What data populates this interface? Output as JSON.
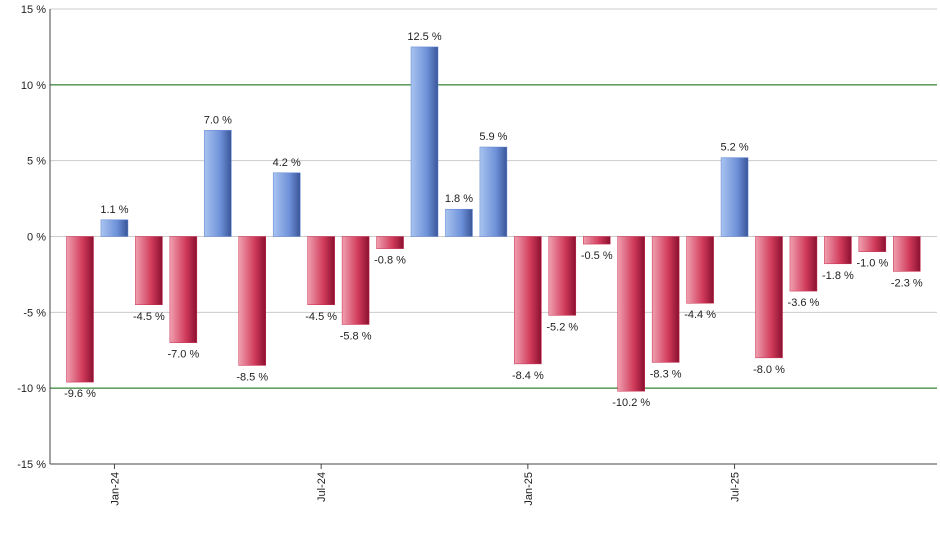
{
  "chart_data": {
    "type": "bar",
    "categories": [
      null,
      "Jan-24",
      null,
      null,
      null,
      null,
      null,
      "Jul-24",
      null,
      null,
      null,
      null,
      null,
      "Jan-25",
      null,
      null,
      null,
      null,
      null,
      "Jul-25",
      null,
      null,
      null,
      null,
      null
    ],
    "values": [
      -9.6,
      1.1,
      -4.5,
      -7.0,
      7.0,
      -8.5,
      4.2,
      -4.5,
      -5.8,
      -0.8,
      12.5,
      1.8,
      5.9,
      -8.4,
      -5.2,
      -0.5,
      -10.2,
      -8.3,
      -4.4,
      5.2,
      -8.0,
      -3.6,
      -1.8,
      -1.0,
      -2.3
    ],
    "value_labels": [
      "-9.6 %",
      "1.1 %",
      "-4.5 %",
      "-7.0 %",
      "7.0 %",
      "-8.5 %",
      "4.2 %",
      "-4.5 %",
      "-5.8 %",
      "-0.8 %",
      "12.5 %",
      "1.8 %",
      "5.9 %",
      "-8.4 %",
      "-5.2 %",
      "-0.5 %",
      "-10.2 %",
      "-8.3 %",
      "-4.4 %",
      "5.2 %",
      "-8.0 %",
      "-3.6 %",
      "-1.8 %",
      "-1.0 %",
      "-2.3 %"
    ],
    "positive_color": "#5a82d2",
    "negative_color": "#c8284a",
    "ylim": [
      -15,
      15
    ],
    "yticks": [
      {
        "value": -15,
        "label": "-15 %"
      },
      {
        "value": -10,
        "label": "-10 %"
      },
      {
        "value": -5,
        "label": "-5 %"
      },
      {
        "value": 0,
        "label": "0 %"
      },
      {
        "value": 5,
        "label": "5 %"
      },
      {
        "value": 10,
        "label": "10 %"
      },
      {
        "value": 15,
        "label": "15 %"
      }
    ],
    "grid": true,
    "grid_colors": [
      "#cccccc",
      "#006600",
      "#cccccc",
      "#cccccc",
      "#cccccc",
      "#006600",
      "#cccccc"
    ]
  }
}
